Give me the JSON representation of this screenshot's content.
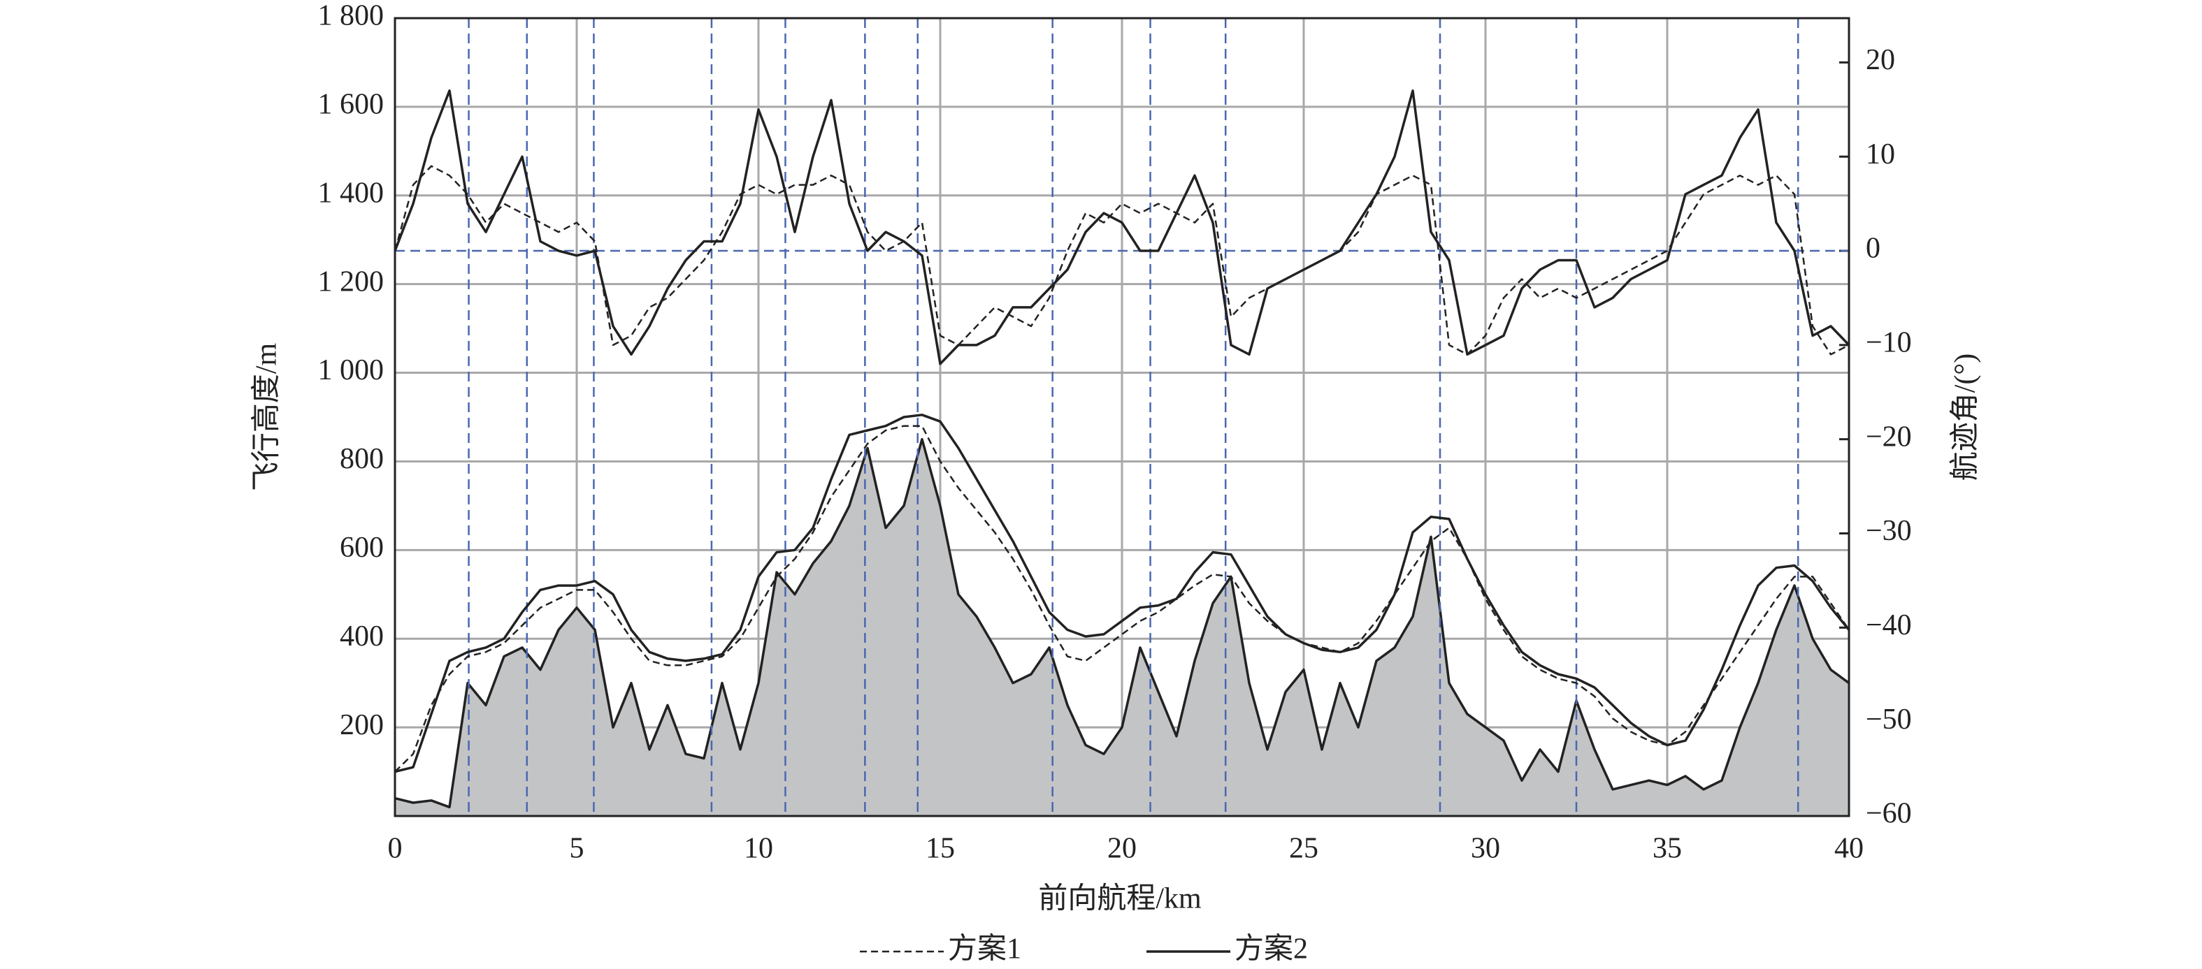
{
  "chart_data": {
    "type": "line",
    "xlabel": "前向航程/km",
    "ylabel": "飞行高度/m",
    "y2label": "航迹角/(°)",
    "x": [
      0,
      0.5,
      1,
      1.5,
      2,
      2.5,
      3,
      3.5,
      4,
      4.5,
      5,
      5.5,
      6,
      6.5,
      7,
      7.5,
      8,
      8.5,
      9,
      9.5,
      10,
      10.5,
      11,
      11.5,
      12,
      12.5,
      13,
      13.5,
      14,
      14.5,
      15,
      15.5,
      16,
      16.5,
      17,
      17.5,
      18,
      18.5,
      19,
      19.5,
      20,
      20.5,
      21,
      21.5,
      22,
      22.5,
      23,
      23.5,
      24,
      24.5,
      25,
      25.5,
      26,
      26.5,
      27,
      27.5,
      28,
      28.5,
      29,
      29.5,
      30,
      30.5,
      31,
      31.5,
      32,
      32.5,
      33,
      33.5,
      34,
      34.5,
      35,
      35.5,
      36,
      36.5,
      37,
      37.5,
      38,
      38.5,
      39,
      39.5,
      40
    ],
    "xlim": [
      0,
      40
    ],
    "xticks": [
      0,
      5,
      10,
      15,
      20,
      25,
      30,
      35,
      40
    ],
    "ylim": [
      0,
      1800
    ],
    "yticks": [
      {
        "value": 200,
        "label": "200"
      },
      400,
      600,
      800,
      {
        "value": 1000,
        "label": "1 000"
      },
      {
        "value": 1200,
        "label": "1 200"
      },
      {
        "value": 1400,
        "label": "1 400"
      },
      {
        "value": 1600,
        "label": "1 600"
      },
      {
        "value": 1800,
        "label": "1 800"
      }
    ],
    "y2lim": [
      -60,
      24.7
    ],
    "y2ticks": [
      {
        "value": -60,
        "label": "−60"
      },
      {
        "value": -50,
        "label": "−50"
      },
      {
        "value": -40,
        "label": "−40"
      },
      {
        "value": -30,
        "label": "−30"
      },
      {
        "value": -20,
        "label": "−20"
      },
      {
        "value": -10,
        "label": "−10"
      },
      0,
      10,
      20
    ],
    "grid": true,
    "waypoints": [
      2.03,
      3.63,
      5.47,
      8.71,
      10.74,
      12.93,
      14.38,
      18.09,
      20.78,
      22.85,
      28.75,
      32.5,
      38.6
    ],
    "y2_reference": 0,
    "series": [
      {
        "fill": "#c3c4c6",
        "color": "#222222",
        "dash": false,
        "values": [
          40,
          30,
          35,
          20,
          300,
          250,
          360,
          380,
          330,
          420,
          470,
          420,
          200,
          300,
          150,
          250,
          140,
          130,
          300,
          150,
          300,
          550,
          500,
          570,
          620,
          700,
          830,
          650,
          700,
          850,
          700,
          500,
          450,
          380,
          300,
          320,
          380,
          250,
          160,
          140,
          200,
          380,
          280,
          180,
          350,
          480,
          540,
          300,
          150,
          280,
          330,
          150,
          300,
          200,
          350,
          380,
          450,
          630,
          300,
          230,
          200,
          170,
          80,
          150,
          100,
          260,
          150,
          60,
          70,
          80,
          70,
          90,
          60,
          80,
          200,
          300,
          420,
          520,
          400,
          330,
          300
        ]
      },
      {
        "name": "方案1",
        "color": "#222222",
        "dash": true,
        "values": [
          100,
          140,
          250,
          320,
          360,
          370,
          390,
          430,
          470,
          490,
          510,
          510,
          460,
          400,
          350,
          340,
          340,
          350,
          360,
          400,
          470,
          540,
          580,
          640,
          720,
          780,
          840,
          870,
          880,
          880,
          800,
          740,
          690,
          640,
          580,
          510,
          430,
          360,
          350,
          380,
          410,
          440,
          460,
          490,
          520,
          545,
          540,
          480,
          440,
          410,
          390,
          380,
          370,
          390,
          440,
          500,
          560,
          620,
          650,
          580,
          490,
          420,
          360,
          330,
          310,
          300,
          270,
          220,
          190,
          170,
          160,
          190,
          250,
          310,
          370,
          430,
          490,
          540,
          540,
          480,
          420
        ]
      },
      {
        "name": "方案2",
        "color": "#222222",
        "dash": false,
        "values": [
          100,
          110,
          230,
          350,
          370,
          380,
          400,
          460,
          510,
          520,
          520,
          530,
          500,
          420,
          370,
          355,
          350,
          355,
          365,
          420,
          540,
          595,
          600,
          650,
          760,
          860,
          870,
          880,
          900,
          905,
          890,
          830,
          760,
          690,
          620,
          540,
          460,
          420,
          405,
          410,
          440,
          470,
          475,
          490,
          550,
          595,
          590,
          520,
          450,
          410,
          390,
          375,
          370,
          380,
          420,
          500,
          640,
          675,
          670,
          580,
          500,
          430,
          370,
          340,
          320,
          310,
          290,
          250,
          210,
          180,
          160,
          170,
          240,
          330,
          430,
          520,
          560,
          565,
          530,
          470,
          420
        ]
      },
      {
        "axis": "y2",
        "color": "#222222",
        "dash": true,
        "values": [
          0,
          7,
          9,
          8,
          6,
          3,
          5,
          4,
          3,
          2,
          3,
          1,
          -10,
          -9,
          -6,
          -5,
          -3,
          -1,
          2,
          6,
          7,
          6,
          7,
          7,
          8,
          7,
          2,
          0,
          1,
          3,
          -9,
          -10,
          -8,
          -6,
          -7,
          -8,
          -5,
          0,
          4,
          3,
          5,
          4,
          5,
          4,
          3,
          5,
          -7,
          -5,
          -4,
          -3,
          -2,
          -1,
          0,
          2,
          6,
          7,
          8,
          7,
          -10,
          -11,
          -9,
          -5,
          -3,
          -5,
          -4,
          -5,
          -4,
          -3,
          -2,
          -1,
          0,
          3,
          6,
          7,
          8,
          7,
          8,
          6,
          -8,
          -11,
          -10
        ]
      },
      {
        "axis": "y2",
        "color": "#222222",
        "dash": false,
        "values": [
          0,
          5,
          12,
          17,
          5,
          2,
          6,
          10,
          1,
          0,
          -0.5,
          0,
          -8,
          -11,
          -8,
          -4,
          -1,
          1,
          1,
          5,
          15,
          10,
          2,
          10,
          16,
          5,
          0,
          2,
          1,
          -0.5,
          -12,
          -10,
          -10,
          -9,
          -6,
          -6,
          -4,
          -2,
          2,
          4,
          3,
          0,
          0,
          4,
          8,
          3,
          -10,
          -11,
          -4,
          -3,
          -2,
          -1,
          0,
          3,
          6,
          10,
          17,
          2,
          -1,
          -11,
          -10,
          -9,
          -4,
          -2,
          -1,
          -1,
          -6,
          -5,
          -3,
          -2,
          -1,
          6,
          7,
          8,
          12,
          15,
          3,
          0,
          -9,
          -8,
          -10
        ]
      }
    ]
  }
}
